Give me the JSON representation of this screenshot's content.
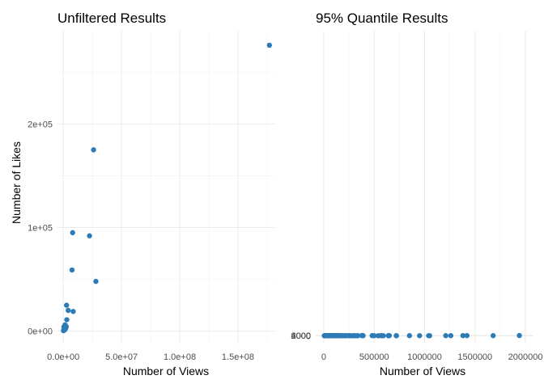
{
  "chart_data": [
    {
      "type": "scatter",
      "title": "Unfiltered Results",
      "xlabel": "Number of Views",
      "ylabel": "Number of Likes",
      "xlim": [
        -5000000,
        182000000
      ],
      "ylim": [
        -12000,
        290000
      ],
      "x_ticks": [
        0,
        50000000,
        100000000,
        150000000
      ],
      "x_tick_labels": [
        "0.0e+00",
        "5.0e+07",
        "1.0e+08",
        "1.5e+08"
      ],
      "y_ticks": [
        0,
        100000,
        200000
      ],
      "y_tick_labels": [
        "0e+00",
        "1e+05",
        "2e+05"
      ],
      "grid": true,
      "point_color": "#2c7bb6",
      "series": [
        {
          "x": [
            177000000,
            26000000,
            22500000,
            8000000,
            28000000,
            7500000,
            2800000,
            4200000,
            8500000,
            500000,
            1000000,
            1800000,
            2000000,
            900000,
            1500000,
            1300000,
            700000,
            2200000,
            400000,
            3000000,
            1100000,
            1600000,
            600000,
            300000,
            2500000,
            800000,
            1400000,
            200000
          ],
          "y": [
            276000,
            175000,
            92000,
            95000,
            48000,
            59000,
            25000,
            20000,
            19000,
            4000,
            3500,
            3000,
            2500,
            2000,
            6000,
            1500,
            1000,
            3200,
            800,
            11000,
            1200,
            5000,
            2200,
            600,
            4500,
            1800,
            2800,
            400
          ]
        }
      ]
    },
    {
      "type": "scatter",
      "title": "95% Quantile Results",
      "xlabel": "Number of Views",
      "ylabel": "",
      "xlim": [
        -80000,
        2080000
      ],
      "ylim": [
        -160000,
        6260000
      ],
      "ylim_note": "",
      "x_ticks": [
        0,
        500000,
        1000000,
        1500000,
        2000000
      ],
      "x_tick_labels": [
        "0",
        "500000",
        "1000000",
        "1500000",
        "2000000"
      ],
      "y_ticks": [
        0,
        2000,
        4000,
        6000
      ],
      "y_tick_labels": [
        "0",
        "2000",
        "4000",
        "6000"
      ],
      "grid": true,
      "point_color": "#2c7bb6",
      "series": [
        {
          "x": [
            380000,
            1940000,
            1420000,
            650000,
            1210000,
            1380000,
            1680000,
            570000,
            480000,
            250000,
            300000,
            720000,
            850000,
            1260000,
            390000,
            640000,
            950000,
            1050000,
            1040000,
            500000,
            570000,
            340000,
            310000,
            160000,
            130000,
            210000,
            230000,
            300000,
            330000,
            380000,
            590000,
            720000,
            540000,
            110000,
            100000,
            80000,
            60000,
            50000,
            40000,
            30000,
            20000,
            120000,
            140000,
            150000,
            90000,
            70000,
            170000,
            180000,
            200000,
            20000,
            30000,
            40000,
            60000,
            80000,
            100000,
            50000,
            70000,
            90000,
            110000,
            130000,
            10000,
            15000,
            25000,
            35000,
            45000,
            55000,
            65000,
            75000,
            85000,
            95000,
            105000,
            115000,
            125000,
            135000,
            145000,
            160000,
            190000,
            220000,
            260000,
            280000,
            5000,
            8000,
            12000,
            18000,
            22000,
            28000,
            33000,
            38000,
            42000,
            48000,
            52000,
            58000,
            62000,
            68000,
            72000,
            78000,
            82000,
            88000,
            92000,
            98000
          ],
          "y": [
            5900,
            3750,
            3510,
            2850,
            2540,
            2480,
            2510,
            2530,
            2320,
            2220,
            2210,
            2170,
            2310,
            2030,
            1990,
            1930,
            1310,
            1380,
            1220,
            1490,
            1520,
            1480,
            1460,
            1240,
            1140,
            1200,
            1130,
            780,
            750,
            580,
            750,
            590,
            400,
            1020,
            900,
            700,
            680,
            650,
            520,
            480,
            420,
            920,
            880,
            750,
            600,
            640,
            720,
            810,
            540,
            120,
            200,
            300,
            400,
            250,
            350,
            180,
            280,
            330,
            380,
            460,
            40,
            60,
            90,
            130,
            160,
            200,
            230,
            260,
            300,
            320,
            360,
            400,
            420,
            480,
            520,
            560,
            610,
            660,
            700,
            730,
            20,
            30,
            50,
            80,
            100,
            140,
            170,
            190,
            220,
            240,
            210,
            270,
            290,
            310,
            340,
            370,
            390,
            430,
            450,
            470
          ]
        }
      ]
    }
  ]
}
